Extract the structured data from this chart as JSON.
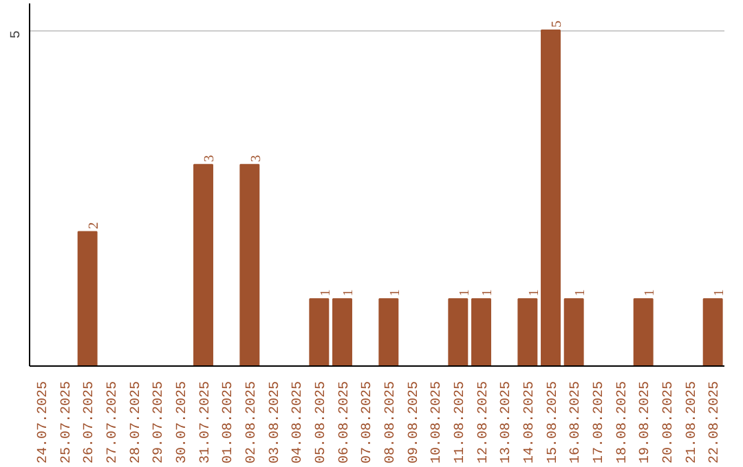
{
  "chart_data": {
    "type": "bar",
    "categories": [
      "24.07.2025",
      "25.07.2025",
      "26.07.2025",
      "27.07.2025",
      "28.07.2025",
      "29.07.2025",
      "30.07.2025",
      "31.07.2025",
      "01.08.2025",
      "02.08.2025",
      "03.08.2025",
      "04.08.2025",
      "05.08.2025",
      "06.08.2025",
      "07.08.2025",
      "08.08.2025",
      "09.08.2025",
      "10.08.2025",
      "11.08.2025",
      "12.08.2025",
      "13.08.2025",
      "14.08.2025",
      "15.08.2025",
      "16.08.2025",
      "17.08.2025",
      "18.08.2025",
      "19.08.2025",
      "20.08.2025",
      "21.08.2025",
      "22.08.2025"
    ],
    "values": [
      0,
      0,
      2,
      0,
      0,
      0,
      0,
      3,
      0,
      3,
      0,
      0,
      1,
      1,
      0,
      1,
      0,
      0,
      1,
      1,
      0,
      1,
      5,
      1,
      0,
      0,
      1,
      0,
      0,
      1
    ],
    "value_labels": [
      null,
      null,
      "2",
      null,
      null,
      null,
      null,
      "3",
      null,
      "3",
      null,
      null,
      "1",
      "1",
      null,
      "1",
      null,
      null,
      "1",
      "1",
      null,
      "1",
      "5",
      "1",
      null,
      null,
      "1",
      null,
      null,
      "1"
    ],
    "color": "#a0522d",
    "ylim": [
      0,
      5.4
    ],
    "yticks": [
      5
    ],
    "grid": "y"
  }
}
